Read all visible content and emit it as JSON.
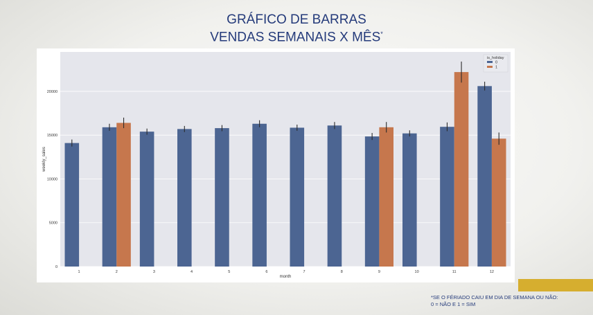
{
  "slide": {
    "title_line1": "GRÁFICO DE BARRAS",
    "title_line2": "VENDAS SEMANAIS X MÊS",
    "title_mark": "*",
    "footnote_line1": "*SE O FÉRIADO CAIU EM DIA DE SEMANA OU NÃO:",
    "footnote_line2": "0 = NÃO E 1 = SIM",
    "accent_color": "#d6ae2f",
    "title_color": "#243a7a"
  },
  "chart_data": {
    "type": "bar",
    "xlabel": "month",
    "ylabel": "weekly_sales",
    "ylim": [
      0,
      24500
    ],
    "yticks": [
      0,
      5000,
      10000,
      15000,
      20000
    ],
    "categories": [
      "1",
      "2",
      "3",
      "4",
      "5",
      "6",
      "7",
      "8",
      "9",
      "10",
      "11",
      "12"
    ],
    "legend": {
      "title": "is_holiday",
      "placement": "top-right"
    },
    "grid": true,
    "series": [
      {
        "name": "0",
        "color": "#4c6592",
        "values": [
          14100,
          15900,
          15400,
          15700,
          15800,
          16300,
          15850,
          16100,
          14850,
          15200,
          15950,
          20600
        ],
        "error": [
          400,
          400,
          350,
          350,
          350,
          400,
          350,
          400,
          400,
          350,
          500,
          500
        ]
      },
      {
        "name": "1",
        "color": "#c6774d",
        "values": [
          null,
          16400,
          null,
          null,
          null,
          null,
          null,
          null,
          15900,
          null,
          22200,
          14600
        ],
        "error": [
          null,
          600,
          null,
          null,
          null,
          null,
          null,
          null,
          600,
          null,
          1200,
          700
        ]
      }
    ]
  }
}
